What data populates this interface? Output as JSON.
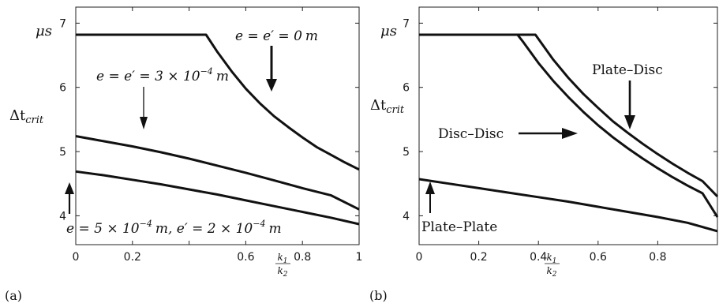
{
  "charts": [
    {
      "panel_label": "(a)",
      "y_top_label": "μs",
      "y_axis_label": "Δt",
      "y_axis_sub": "crit",
      "x_axis_num": "k",
      "x_axis_num_sub": "1",
      "x_axis_den": "k",
      "x_axis_den_sub": "2"
    },
    {
      "panel_label": "(b)",
      "y_top_label": "μs",
      "y_axis_label": "Δt",
      "y_axis_sub": "crit",
      "x_axis_num": "k",
      "x_axis_num_sub": "1",
      "x_axis_den": "k",
      "x_axis_den_sub": "2"
    }
  ],
  "chart_data": [
    {
      "type": "line",
      "xlim": [
        0,
        1
      ],
      "ylim": [
        3.55,
        7.25
      ],
      "xticks": [
        0,
        0.2,
        0.4,
        0.6,
        0.8,
        1
      ],
      "xtick_labels": [
        "0",
        "0.2",
        "",
        "0.6",
        "0.8",
        "1"
      ],
      "yticks": [
        4,
        5,
        6,
        7
      ],
      "ytick_labels": [
        "4",
        "5",
        "6",
        "7"
      ],
      "grid": false,
      "series": [
        {
          "x": [
            0,
            0.1,
            0.2,
            0.3,
            0.4,
            0.44,
            0.46,
            0.5,
            0.55,
            0.6,
            0.65,
            0.7,
            0.75,
            0.8,
            0.85,
            0.9,
            0.95,
            1.0
          ],
          "y": [
            6.82,
            6.82,
            6.82,
            6.82,
            6.82,
            6.82,
            6.82,
            6.55,
            6.25,
            5.98,
            5.75,
            5.55,
            5.38,
            5.22,
            5.07,
            4.95,
            4.83,
            4.72
          ]
        },
        {
          "x": [
            0,
            0.1,
            0.2,
            0.3,
            0.4,
            0.5,
            0.6,
            0.7,
            0.8,
            0.9,
            1.0
          ],
          "y": [
            5.24,
            5.16,
            5.08,
            4.99,
            4.89,
            4.78,
            4.67,
            4.55,
            4.43,
            4.32,
            4.1
          ]
        },
        {
          "x": [
            0,
            0.1,
            0.2,
            0.3,
            0.4,
            0.5,
            0.6,
            0.7,
            0.8,
            0.9,
            1.0
          ],
          "y": [
            4.69,
            4.63,
            4.56,
            4.49,
            4.41,
            4.33,
            4.24,
            4.15,
            4.06,
            3.97,
            3.87
          ]
        }
      ],
      "annotations": [
        {
          "lhs": "e = e′ = 0",
          "unit": "m"
        },
        {
          "lhs": "e = e′ = 3 × 10",
          "exp": "−4",
          "unit": "m"
        },
        {
          "lhs": "e = 5 × 10",
          "exp": "−4",
          "mid": "m, e′ = 2 × 10",
          "exp2": "−4",
          "unit": "m"
        }
      ]
    },
    {
      "type": "line",
      "xlim": [
        0,
        1
      ],
      "ylim": [
        3.55,
        7.25
      ],
      "xticks": [
        0,
        0.2,
        0.4,
        0.6,
        0.8
      ],
      "xtick_labels": [
        "0",
        "0.2",
        "0.4",
        "0.6",
        "0.8"
      ],
      "yticks": [
        4,
        5,
        6,
        7
      ],
      "ytick_labels": [
        "4",
        "5",
        "6",
        "7"
      ],
      "grid": false,
      "series": [
        {
          "name": "Plate–Disc",
          "x": [
            0,
            0.1,
            0.2,
            0.3,
            0.35,
            0.39,
            0.45,
            0.5,
            0.55,
            0.6,
            0.65,
            0.7,
            0.75,
            0.8,
            0.85,
            0.9,
            0.95,
            1.0
          ],
          "y": [
            6.82,
            6.82,
            6.82,
            6.82,
            6.82,
            6.82,
            6.43,
            6.15,
            5.9,
            5.68,
            5.47,
            5.29,
            5.12,
            4.96,
            4.81,
            4.67,
            4.54,
            4.3
          ]
        },
        {
          "name": "Disc–Disc",
          "x": [
            0,
            0.1,
            0.2,
            0.3,
            0.33,
            0.35,
            0.4,
            0.45,
            0.5,
            0.55,
            0.6,
            0.65,
            0.7,
            0.75,
            0.8,
            0.85,
            0.9,
            0.95,
            1.0
          ],
          "y": [
            6.82,
            6.82,
            6.82,
            6.82,
            6.82,
            6.7,
            6.38,
            6.1,
            5.85,
            5.62,
            5.41,
            5.22,
            5.05,
            4.89,
            4.74,
            4.6,
            4.47,
            4.35,
            3.98
          ]
        },
        {
          "name": "Plate–Plate",
          "x": [
            0,
            0.1,
            0.2,
            0.3,
            0.4,
            0.5,
            0.6,
            0.7,
            0.8,
            0.9,
            1.0
          ],
          "y": [
            4.57,
            4.5,
            4.43,
            4.36,
            4.29,
            4.22,
            4.14,
            4.06,
            3.98,
            3.89,
            3.76
          ]
        }
      ]
    }
  ]
}
